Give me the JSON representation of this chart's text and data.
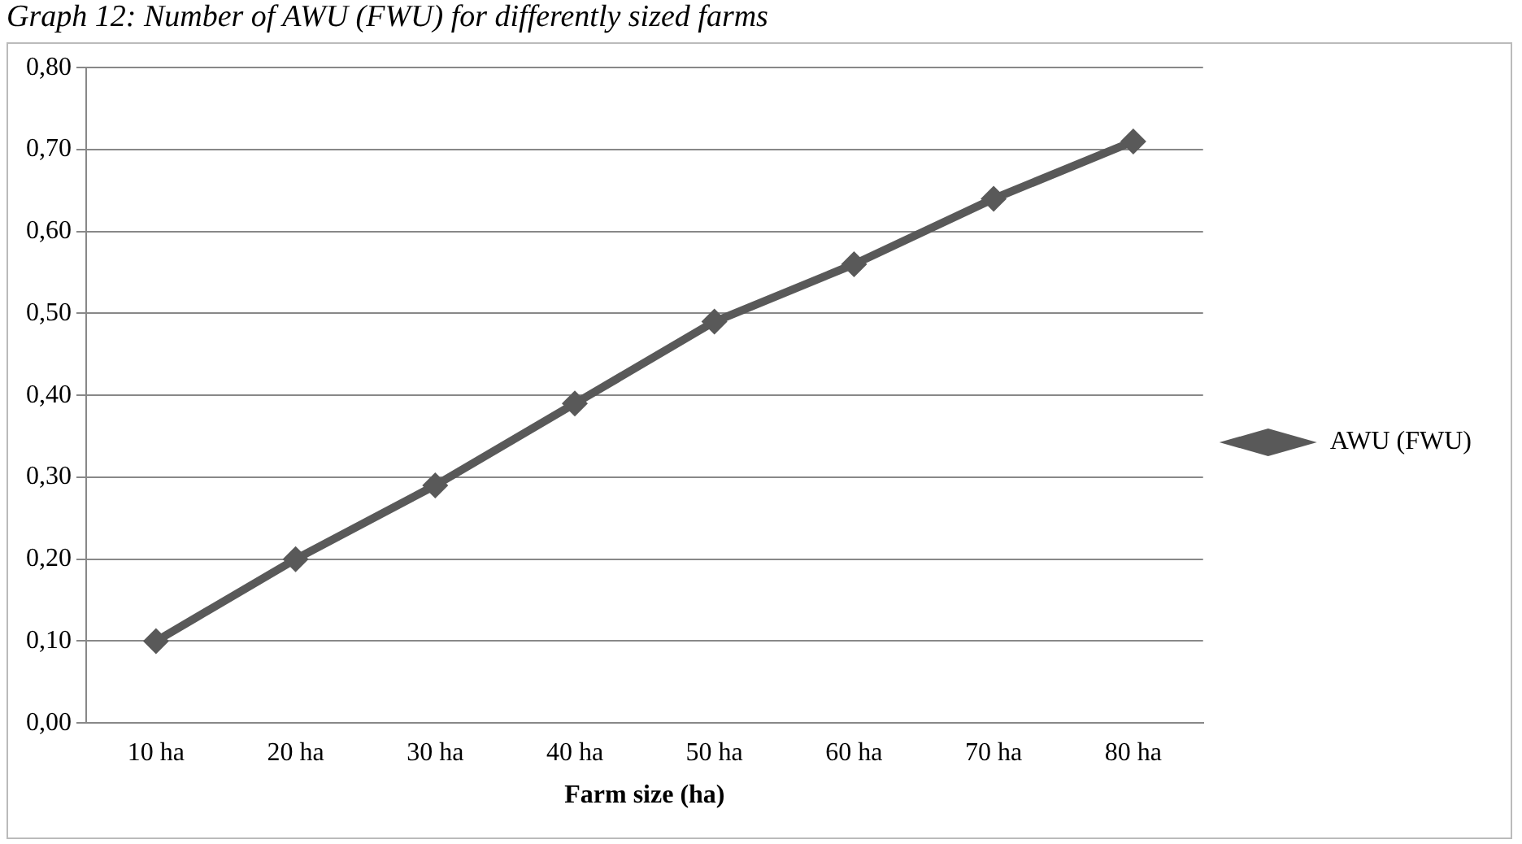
{
  "chart_data": {
    "type": "line",
    "title": "Graph 12: Number of AWU (FWU) for differently sized farms",
    "xlabel": "Farm size (ha)",
    "categories": [
      "10 ha",
      "20 ha",
      "30 ha",
      "40 ha",
      "50 ha",
      "60 ha",
      "70 ha",
      "80 ha"
    ],
    "series": [
      {
        "name": "AWU (FWU)",
        "color": "#595959",
        "values": [
          0.1,
          0.2,
          0.29,
          0.39,
          0.49,
          0.56,
          0.64,
          0.71
        ]
      }
    ],
    "ylim": [
      0,
      0.8
    ],
    "yticks": [
      {
        "value": 0,
        "label": "0,00"
      },
      {
        "value": 0.1,
        "label": "0,10"
      },
      {
        "value": 0.2,
        "label": "0,20"
      },
      {
        "value": 0.3,
        "label": "0,30"
      },
      {
        "value": 0.4,
        "label": "0,40"
      },
      {
        "value": 0.5,
        "label": "0,50"
      },
      {
        "value": 0.6,
        "label": "0,60"
      },
      {
        "value": 0.7,
        "label": "0,70"
      },
      {
        "value": 0.8,
        "label": "0,80"
      }
    ],
    "grid": "y",
    "legend": "right",
    "marker": "diamond",
    "line_style": "solid"
  }
}
